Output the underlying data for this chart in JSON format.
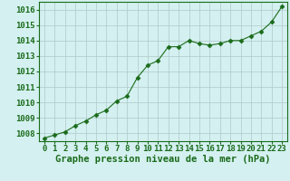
{
  "x": [
    0,
    1,
    2,
    3,
    4,
    5,
    6,
    7,
    8,
    9,
    10,
    11,
    12,
    13,
    14,
    15,
    16,
    17,
    18,
    19,
    20,
    21,
    22,
    23
  ],
  "y": [
    1007.7,
    1007.9,
    1008.1,
    1008.5,
    1008.8,
    1009.2,
    1009.5,
    1010.1,
    1010.4,
    1011.6,
    1012.4,
    1012.7,
    1013.6,
    1013.6,
    1014.0,
    1013.8,
    1013.7,
    1013.8,
    1014.0,
    1014.0,
    1014.3,
    1014.6,
    1015.2,
    1016.2
  ],
  "ylim": [
    1007.5,
    1016.5
  ],
  "yticks": [
    1008,
    1009,
    1010,
    1011,
    1012,
    1013,
    1014,
    1015,
    1016
  ],
  "xlim": [
    -0.5,
    23.5
  ],
  "xticks": [
    0,
    1,
    2,
    3,
    4,
    5,
    6,
    7,
    8,
    9,
    10,
    11,
    12,
    13,
    14,
    15,
    16,
    17,
    18,
    19,
    20,
    21,
    22,
    23
  ],
  "xlabel": "Graphe pression niveau de la mer (hPa)",
  "line_color": "#1a6b1a",
  "marker": "D",
  "marker_size": 2.5,
  "bg_color": "#d4f0f0",
  "grid_color": "#b0c8c8",
  "axis_color": "#1a6b1a",
  "tick_label_color": "#1a6b1a",
  "xlabel_color": "#1a6b1a",
  "xlabel_fontsize": 7.5,
  "tick_fontsize": 6.5
}
